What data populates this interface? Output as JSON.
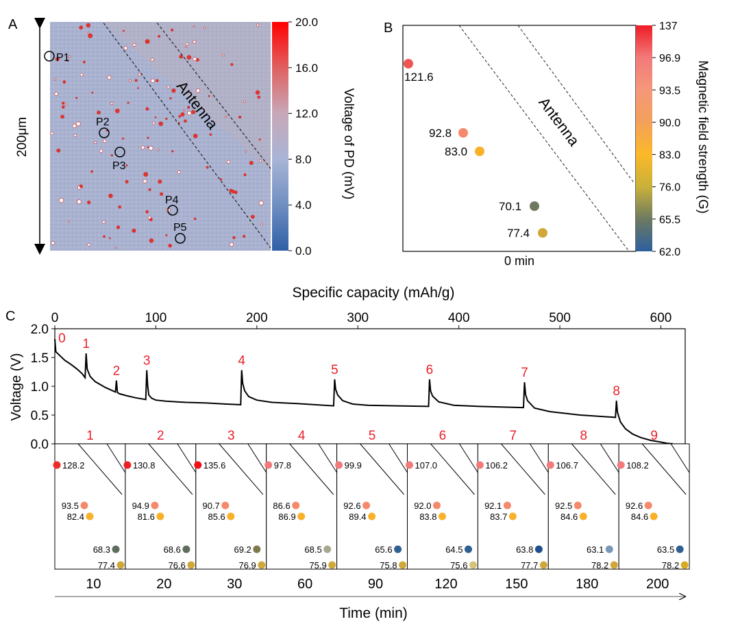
{
  "panels": {
    "A": {
      "letter": "A",
      "scale_label": "200μm",
      "antenna_label": "Antenna",
      "colorbar": {
        "title": "Voltage of  PD (mV)",
        "ticks": [
          "20.0",
          "16.0",
          "12.0",
          "8.0",
          "4.0",
          "0.0"
        ],
        "colors": [
          "#ff0000",
          "#e06060",
          "#c8a8b8",
          "#a9b4d6",
          "#6f8fc2",
          "#2f5fa6"
        ]
      },
      "points": [
        "P1",
        "P2",
        "P3",
        "P4",
        "P5"
      ]
    },
    "B": {
      "letter": "B",
      "antenna_label": "Antenna",
      "time_label": "0 min",
      "colorbar": {
        "title": "Magnetic field strength (G)",
        "ticks": [
          "137",
          "96.9",
          "93.5",
          "90.0",
          "83.0",
          "76.0",
          "65.5",
          "62.0"
        ],
        "colors": [
          "#ee1c25",
          "#f27a7a",
          "#f5977a",
          "#f3a15a",
          "#fbb829",
          "#c9b13a",
          "#6e7a60",
          "#2d5fa0"
        ]
      },
      "points": [
        {
          "value": "121.6",
          "color": "#f05555"
        },
        {
          "value": "92.8",
          "color": "#f5896b"
        },
        {
          "value": "83.0",
          "color": "#f9b12a"
        },
        {
          "value": "70.1",
          "color": "#6e7860"
        },
        {
          "value": "77.4",
          "color": "#d0a83a"
        }
      ]
    },
    "C": {
      "letter": "C",
      "top_axis_label": "Specific capacity (mAh/g)",
      "y_axis_label": "Voltage (V)",
      "time_axis_label": "Time (min)",
      "highlight_color": "#e8202a"
    }
  },
  "chart_data": {
    "type": "line",
    "title": "",
    "xlabel": "Specific capacity (mAh/g)",
    "ylabel": "Voltage (V)",
    "xlim": [
      0,
      620
    ],
    "ylim": [
      0.0,
      2.0
    ],
    "xticks": [
      0,
      100,
      200,
      300,
      400,
      500,
      600
    ],
    "yticks": [
      0.0,
      0.5,
      1.0,
      1.5,
      2.0
    ],
    "grid": false,
    "x": [
      0,
      1,
      4,
      10,
      16,
      22,
      27,
      30,
      31,
      32,
      35,
      40,
      50,
      60,
      61,
      62,
      64,
      70,
      80,
      90,
      91,
      92,
      93,
      96,
      100,
      110,
      130,
      150,
      170,
      184,
      185,
      186,
      188,
      192,
      200,
      215,
      240,
      276,
      277,
      278,
      280,
      285,
      295,
      310,
      340,
      370,
      371,
      372,
      374,
      380,
      395,
      420,
      464,
      465,
      466,
      468,
      475,
      490,
      520,
      555,
      556,
      557,
      560,
      565,
      572,
      580,
      590,
      600,
      606,
      612
    ],
    "y": [
      1.82,
      1.6,
      1.55,
      1.45,
      1.38,
      1.3,
      1.22,
      1.15,
      1.57,
      1.3,
      1.17,
      1.08,
      0.98,
      0.9,
      1.1,
      0.89,
      0.87,
      0.84,
      0.8,
      0.77,
      1.28,
      1.0,
      0.85,
      0.79,
      0.76,
      0.74,
      0.72,
      0.71,
      0.69,
      0.68,
      1.28,
      1.05,
      0.92,
      0.82,
      0.76,
      0.72,
      0.7,
      0.66,
      1.12,
      0.95,
      0.85,
      0.75,
      0.69,
      0.67,
      0.66,
      0.65,
      1.12,
      0.92,
      0.83,
      0.73,
      0.67,
      0.65,
      0.63,
      1.07,
      0.86,
      0.75,
      0.62,
      0.56,
      0.5,
      0.46,
      0.75,
      0.55,
      0.38,
      0.26,
      0.17,
      0.11,
      0.06,
      0.03,
      0.01,
      0.0
    ],
    "labels_above": [
      {
        "text": "0",
        "x": 3,
        "y": 1.82
      },
      {
        "text": "1",
        "x": 31,
        "y": 1.57
      },
      {
        "text": "2",
        "x": 61,
        "y": 1.1
      },
      {
        "text": "3",
        "x": 91,
        "y": 1.28
      },
      {
        "text": "4",
        "x": 185,
        "y": 1.28
      },
      {
        "text": "5",
        "x": 277,
        "y": 1.12
      },
      {
        "text": "6",
        "x": 371,
        "y": 1.12
      },
      {
        "text": "7",
        "x": 465,
        "y": 1.07
      },
      {
        "text": "8",
        "x": 556,
        "y": 0.75
      }
    ],
    "labels_bottom": [
      "1",
      "2",
      "3",
      "4",
      "5",
      "6",
      "7",
      "8",
      "9"
    ],
    "time_ticks": [
      "10",
      "20",
      "30",
      "60",
      "90",
      "120",
      "150",
      "180",
      "200"
    ],
    "snapshots": [
      {
        "time": "10",
        "values": [
          {
            "v": "128.2",
            "c": "#ee2a2a"
          },
          {
            "v": "93.5",
            "c": "#f5896b"
          },
          {
            "v": "82.4",
            "c": "#f9b12a"
          },
          {
            "v": "68.3",
            "c": "#5e6e5e"
          },
          {
            "v": "77.4",
            "c": "#d0a83a"
          }
        ]
      },
      {
        "time": "20",
        "values": [
          {
            "v": "130.8",
            "c": "#ee1f25"
          },
          {
            "v": "94.9",
            "c": "#f5896b"
          },
          {
            "v": "81.6",
            "c": "#f9b12a"
          },
          {
            "v": "68.6",
            "c": "#5e6e5e"
          },
          {
            "v": "76.6",
            "c": "#d0a83a"
          }
        ]
      },
      {
        "time": "30",
        "values": [
          {
            "v": "135.6",
            "c": "#ee0f1a"
          },
          {
            "v": "90.7",
            "c": "#f5896b"
          },
          {
            "v": "85.6",
            "c": "#f9b12a"
          },
          {
            "v": "69.2",
            "c": "#7e7a4e"
          },
          {
            "v": "76.9",
            "c": "#d0a83a"
          }
        ]
      },
      {
        "time": "60",
        "values": [
          {
            "v": "97.8",
            "c": "#f27a7a"
          },
          {
            "v": "86.6",
            "c": "#f5896b"
          },
          {
            "v": "86.9",
            "c": "#f9b12a"
          },
          {
            "v": "68.5",
            "c": "#a8a890"
          },
          {
            "v": "75.9",
            "c": "#d0a83a"
          }
        ]
      },
      {
        "time": "90",
        "values": [
          {
            "v": "99.9",
            "c": "#f27a7a"
          },
          {
            "v": "92.6",
            "c": "#f5896b"
          },
          {
            "v": "89.4",
            "c": "#f9b12a"
          },
          {
            "v": "65.6",
            "c": "#2f5f94"
          },
          {
            "v": "75.8",
            "c": "#d0a83a"
          }
        ]
      },
      {
        "time": "120",
        "values": [
          {
            "v": "107.0",
            "c": "#f27a7a"
          },
          {
            "v": "92.0",
            "c": "#f5896b"
          },
          {
            "v": "83.8",
            "c": "#f9b12a"
          },
          {
            "v": "64.5",
            "c": "#2f5f94"
          },
          {
            "v": "75.6",
            "c": "#d8c27a"
          }
        ]
      },
      {
        "time": "150",
        "values": [
          {
            "v": "106.2",
            "c": "#f27a7a"
          },
          {
            "v": "92.1",
            "c": "#f5896b"
          },
          {
            "v": "83.7",
            "c": "#f9b12a"
          },
          {
            "v": "63.8",
            "c": "#1f4f8c"
          },
          {
            "v": "77.7",
            "c": "#d0a83a"
          }
        ]
      },
      {
        "time": "180",
        "values": [
          {
            "v": "106.7",
            "c": "#f27a7a"
          },
          {
            "v": "92.5",
            "c": "#f5896b"
          },
          {
            "v": "84.6",
            "c": "#f9b12a"
          },
          {
            "v": "63.1",
            "c": "#7a98b8"
          },
          {
            "v": "78.2",
            "c": "#d0a83a"
          }
        ]
      },
      {
        "time": "200",
        "values": [
          {
            "v": "108.2",
            "c": "#f27a7a"
          },
          {
            "v": "92.6",
            "c": "#f5896b"
          },
          {
            "v": "84.6",
            "c": "#f9b12a"
          },
          {
            "v": "63.5",
            "c": "#2f5f94"
          },
          {
            "v": "78.2",
            "c": "#d8aa22"
          }
        ]
      }
    ]
  }
}
